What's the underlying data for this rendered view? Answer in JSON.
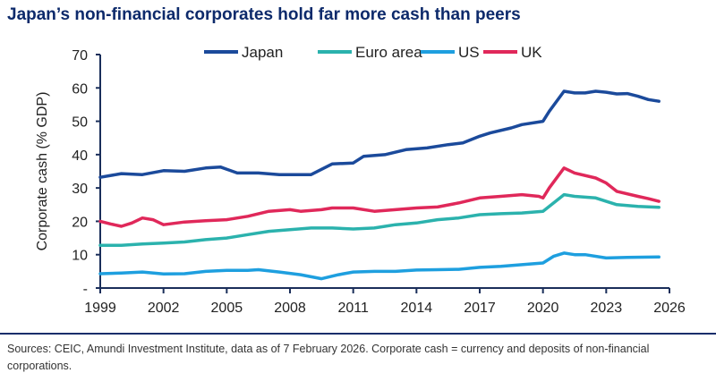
{
  "chart_data": {
    "type": "line",
    "title": "Japan’s non-financial corporates hold far more cash than peers",
    "xlabel": "",
    "ylabel": "Corporate cash (% GDP)",
    "xlim": [
      1999,
      2026
    ],
    "ylim": [
      0,
      70
    ],
    "xticks": [
      1999,
      2002,
      2005,
      2008,
      2011,
      2014,
      2017,
      2020,
      2023,
      2026
    ],
    "yticks": [
      0,
      10,
      20,
      30,
      40,
      50,
      60,
      70
    ],
    "ytick_labels": [
      "-",
      "10",
      "20",
      "30",
      "40",
      "50",
      "60",
      "70"
    ],
    "grid": false,
    "legend": "top",
    "series": [
      {
        "name": "Japan",
        "color": "#1b4a9b",
        "x": [
          1999,
          2000,
          2001,
          2002,
          2003,
          2004,
          2004.7,
          2005.5,
          2006.5,
          2007.5,
          2009,
          2010,
          2011,
          2011.5,
          2012.5,
          2013.5,
          2014.5,
          2015.5,
          2016.2,
          2017,
          2017.5,
          2018.5,
          2019,
          2020,
          2020.3,
          2021,
          2021.5,
          2022,
          2022.5,
          2023,
          2023.5,
          2024,
          2024.5,
          2025,
          2025.5
        ],
        "y": [
          33.2,
          34.3,
          34.0,
          35.2,
          35.0,
          36.0,
          36.3,
          34.5,
          34.5,
          34.0,
          34.0,
          37.2,
          37.5,
          39.5,
          40.0,
          41.5,
          42.0,
          43.0,
          43.5,
          45.5,
          46.5,
          48.0,
          49.0,
          50.0,
          53.0,
          59.0,
          58.5,
          58.5,
          59.0,
          58.7,
          58.2,
          58.3,
          57.5,
          56.5,
          56.0
        ]
      },
      {
        "name": "Euro area",
        "color": "#2bb2ad",
        "x": [
          1999,
          2000,
          2001,
          2002,
          2003,
          2004,
          2005,
          2006,
          2007,
          2008,
          2009,
          2010,
          2011,
          2012,
          2013,
          2014,
          2015,
          2016,
          2017,
          2018,
          2019,
          2020,
          2021,
          2021.5,
          2022.5,
          2023,
          2023.5,
          2024.5,
          2025.5
        ],
        "y": [
          12.8,
          12.8,
          13.2,
          13.5,
          13.8,
          14.5,
          15.0,
          16.0,
          17.0,
          17.5,
          18.0,
          18.0,
          17.7,
          18.0,
          19.0,
          19.5,
          20.5,
          21.0,
          22.0,
          22.3,
          22.5,
          23.0,
          28.0,
          27.5,
          27.0,
          26.0,
          25.0,
          24.5,
          24.2
        ]
      },
      {
        "name": "US",
        "color": "#1e9fdf",
        "x": [
          1999,
          2000,
          2001,
          2002,
          2003,
          2004,
          2005,
          2006,
          2006.5,
          2007.5,
          2008.5,
          2009.5,
          2010.3,
          2011,
          2012,
          2013,
          2014,
          2015,
          2016,
          2017,
          2018,
          2019,
          2020,
          2020.5,
          2021,
          2021.5,
          2022,
          2023,
          2024,
          2025.5
        ],
        "y": [
          4.3,
          4.5,
          4.8,
          4.2,
          4.3,
          5.0,
          5.3,
          5.3,
          5.5,
          4.8,
          4.0,
          2.8,
          4.0,
          4.8,
          5.0,
          5.0,
          5.4,
          5.5,
          5.6,
          6.2,
          6.5,
          7.0,
          7.5,
          9.5,
          10.5,
          10.0,
          10.0,
          9.0,
          9.2,
          9.3
        ]
      },
      {
        "name": "UK",
        "color": "#e0285a",
        "x": [
          1999,
          1999.5,
          2000,
          2000.5,
          2001,
          2001.5,
          2002,
          2003,
          2004,
          2005,
          2006,
          2007,
          2008,
          2008.5,
          2009.5,
          2010,
          2011,
          2012,
          2013,
          2014,
          2015,
          2016,
          2017,
          2018,
          2019,
          2019.8,
          2020,
          2020.3,
          2021,
          2021.5,
          2022.5,
          2023,
          2023.5,
          2024.5,
          2025,
          2025.5
        ],
        "y": [
          20.0,
          19.2,
          18.5,
          19.5,
          21.0,
          20.5,
          19.0,
          19.8,
          20.2,
          20.5,
          21.5,
          23.0,
          23.5,
          23.0,
          23.5,
          24.0,
          24.0,
          23.0,
          23.5,
          24.0,
          24.3,
          25.5,
          27.0,
          27.5,
          28.0,
          27.5,
          27.0,
          30.0,
          36.0,
          34.5,
          33.0,
          31.5,
          29.0,
          27.5,
          26.8,
          26.0
        ]
      }
    ]
  },
  "source": "Sources: CEIC, Amundi Investment Institute, data as of 7 February 2026.  Corporate cash = currency and deposits of non-financial corporations."
}
